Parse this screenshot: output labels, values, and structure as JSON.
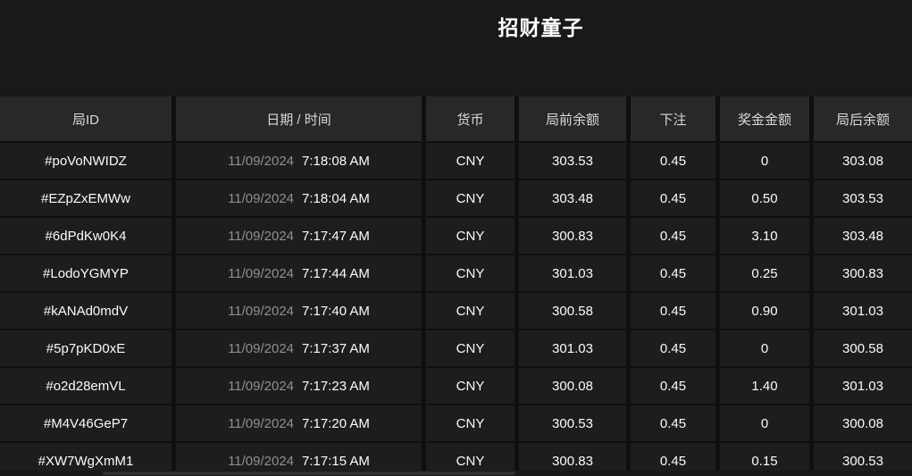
{
  "title": "招财童子",
  "colors": {
    "page_background": "#191919",
    "header_cell_background": "#282828",
    "row_cell_background": "#1d1d1d",
    "primary_text": "#fbfbfb",
    "header_text": "#d9d9d9",
    "date_text": "#8f8f8f"
  },
  "table": {
    "columns": [
      {
        "key": "id",
        "label": "局ID"
      },
      {
        "key": "datetime",
        "label": "日期 / 时间"
      },
      {
        "key": "currency",
        "label": "货币"
      },
      {
        "key": "balance_before",
        "label": "局前余额"
      },
      {
        "key": "bet",
        "label": "下注"
      },
      {
        "key": "win",
        "label": "奖金金额"
      },
      {
        "key": "balance_after",
        "label": "局后余额"
      }
    ],
    "rows": [
      {
        "id": "#poVoNWIDZ",
        "date": "11/09/2024",
        "time": "7:18:08 AM",
        "currency": "CNY",
        "balance_before": "303.53",
        "bet": "0.45",
        "win": "0",
        "balance_after": "303.08"
      },
      {
        "id": "#EZpZxEMWw",
        "date": "11/09/2024",
        "time": "7:18:04 AM",
        "currency": "CNY",
        "balance_before": "303.48",
        "bet": "0.45",
        "win": "0.50",
        "balance_after": "303.53"
      },
      {
        "id": "#6dPdKw0K4",
        "date": "11/09/2024",
        "time": "7:17:47 AM",
        "currency": "CNY",
        "balance_before": "300.83",
        "bet": "0.45",
        "win": "3.10",
        "balance_after": "303.48"
      },
      {
        "id": "#LodoYGMYP",
        "date": "11/09/2024",
        "time": "7:17:44 AM",
        "currency": "CNY",
        "balance_before": "301.03",
        "bet": "0.45",
        "win": "0.25",
        "balance_after": "300.83"
      },
      {
        "id": "#kANAd0mdV",
        "date": "11/09/2024",
        "time": "7:17:40 AM",
        "currency": "CNY",
        "balance_before": "300.58",
        "bet": "0.45",
        "win": "0.90",
        "balance_after": "301.03"
      },
      {
        "id": "#5p7pKD0xE",
        "date": "11/09/2024",
        "time": "7:17:37 AM",
        "currency": "CNY",
        "balance_before": "301.03",
        "bet": "0.45",
        "win": "0",
        "balance_after": "300.58"
      },
      {
        "id": "#o2d28emVL",
        "date": "11/09/2024",
        "time": "7:17:23 AM",
        "currency": "CNY",
        "balance_before": "300.08",
        "bet": "0.45",
        "win": "1.40",
        "balance_after": "301.03"
      },
      {
        "id": "#M4V46GeP7",
        "date": "11/09/2024",
        "time": "7:17:20 AM",
        "currency": "CNY",
        "balance_before": "300.53",
        "bet": "0.45",
        "win": "0",
        "balance_after": "300.08"
      },
      {
        "id": "#XW7WgXmM1",
        "date": "11/09/2024",
        "time": "7:17:15 AM",
        "currency": "CNY",
        "balance_before": "300.83",
        "bet": "0.45",
        "win": "0.15",
        "balance_after": "300.53"
      }
    ]
  }
}
